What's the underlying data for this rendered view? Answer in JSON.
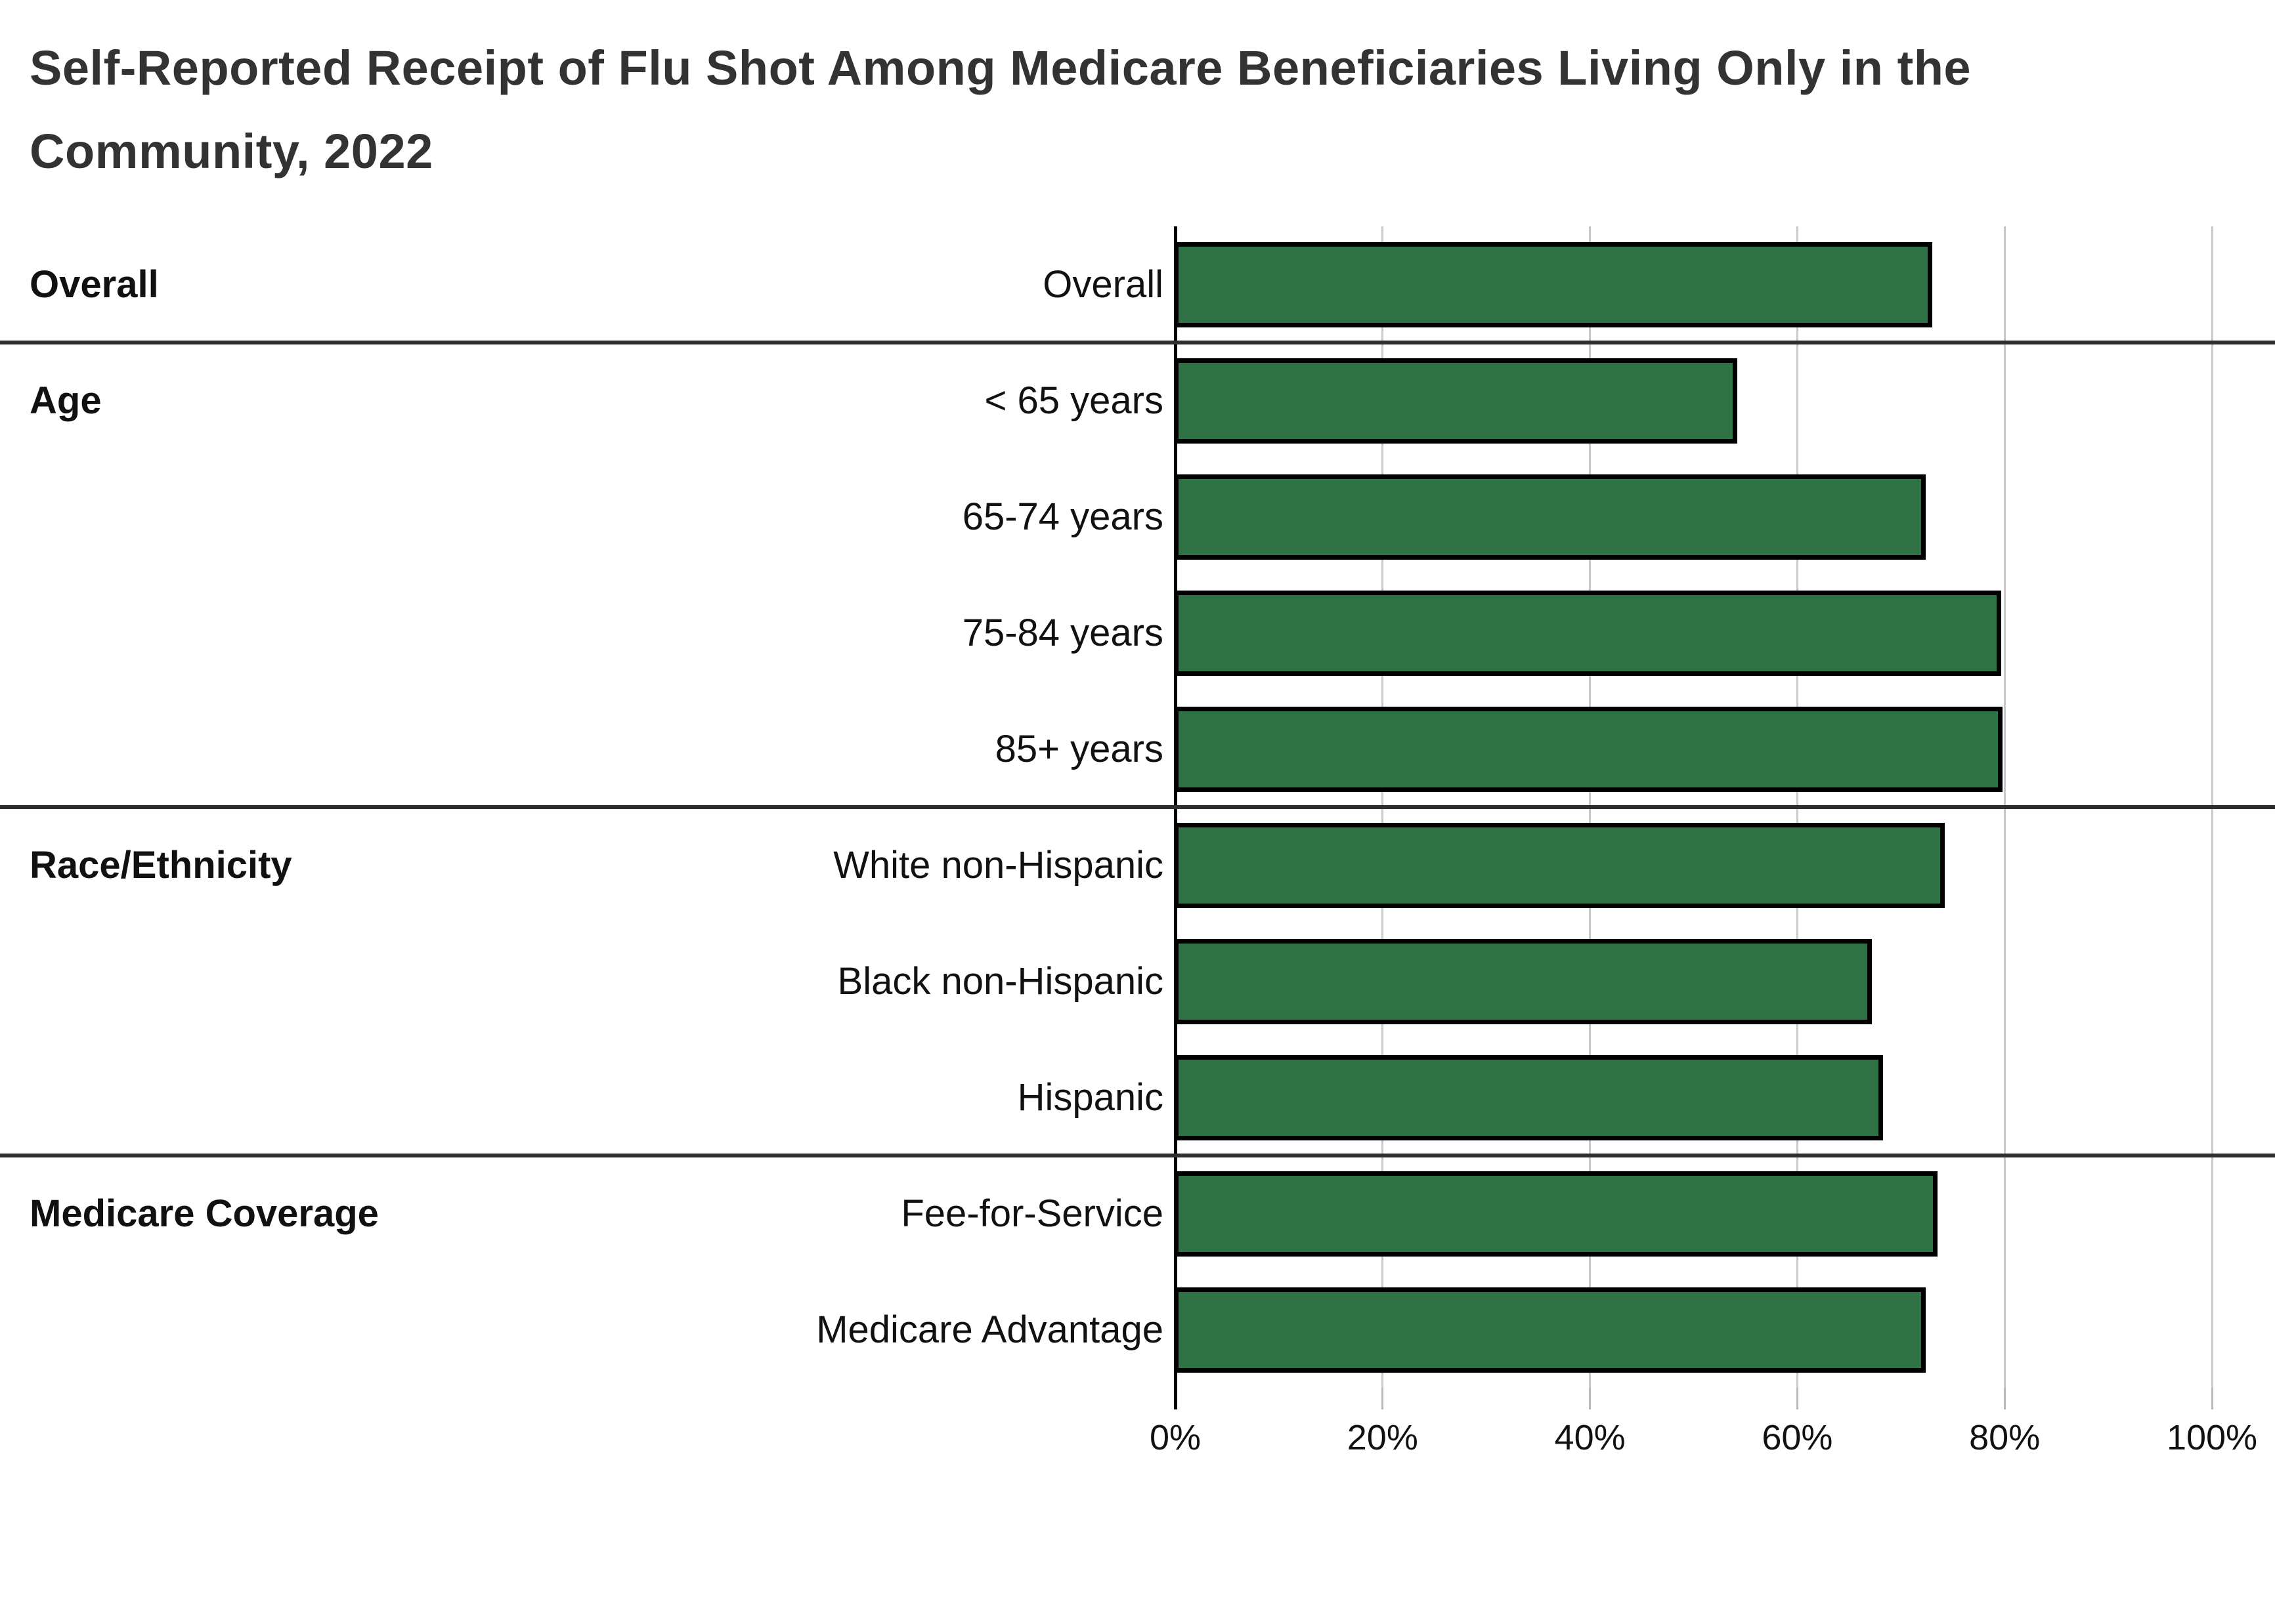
{
  "title": {
    "full": "Self-Reported Receipt of Flu Shot Among Medicare Beneficiaries Living Only in the Community, 2022",
    "line1": "Self-Reported Receipt of Flu Shot Among Medicare Beneficiaries Living Only in the",
    "line2": "Community, 2022"
  },
  "chart_data": {
    "type": "bar",
    "orientation": "horizontal",
    "title": "Self-Reported Receipt of Flu Shot Among Medicare Beneficiaries Living Only in the Community, 2022",
    "xlabel": "",
    "ylabel": "",
    "unit": "%",
    "xlim": [
      0,
      100
    ],
    "x_tick_labels": [
      "0%",
      "20%",
      "40%",
      "60%",
      "80%",
      "100%"
    ],
    "x_tick_values": [
      0,
      20,
      40,
      60,
      80,
      100
    ],
    "grid": true,
    "legend": false,
    "bar_color": "#2F7246",
    "bar_border_color": "#000000",
    "gridline_color": "#c9c9c9",
    "groups": [
      {
        "label": "Overall",
        "rows": [
          {
            "label": "Overall",
            "value": 73.0
          }
        ]
      },
      {
        "label": "Age",
        "rows": [
          {
            "label": "< 65 years",
            "value": 54.2
          },
          {
            "label": "65-74 years",
            "value": 72.4
          },
          {
            "label": "75-84 years",
            "value": 79.7
          },
          {
            "label": "85+ years",
            "value": 79.8
          }
        ]
      },
      {
        "label": "Race/Ethnicity",
        "rows": [
          {
            "label": "White non-Hispanic",
            "value": 74.2
          },
          {
            "label": "Black non-Hispanic",
            "value": 67.2
          },
          {
            "label": "Hispanic",
            "value": 68.3
          }
        ]
      },
      {
        "label": "Medicare Coverage",
        "rows": [
          {
            "label": "Fee-for-Service",
            "value": 73.5
          },
          {
            "label": "Medicare Advantage",
            "value": 72.4
          }
        ]
      }
    ]
  }
}
